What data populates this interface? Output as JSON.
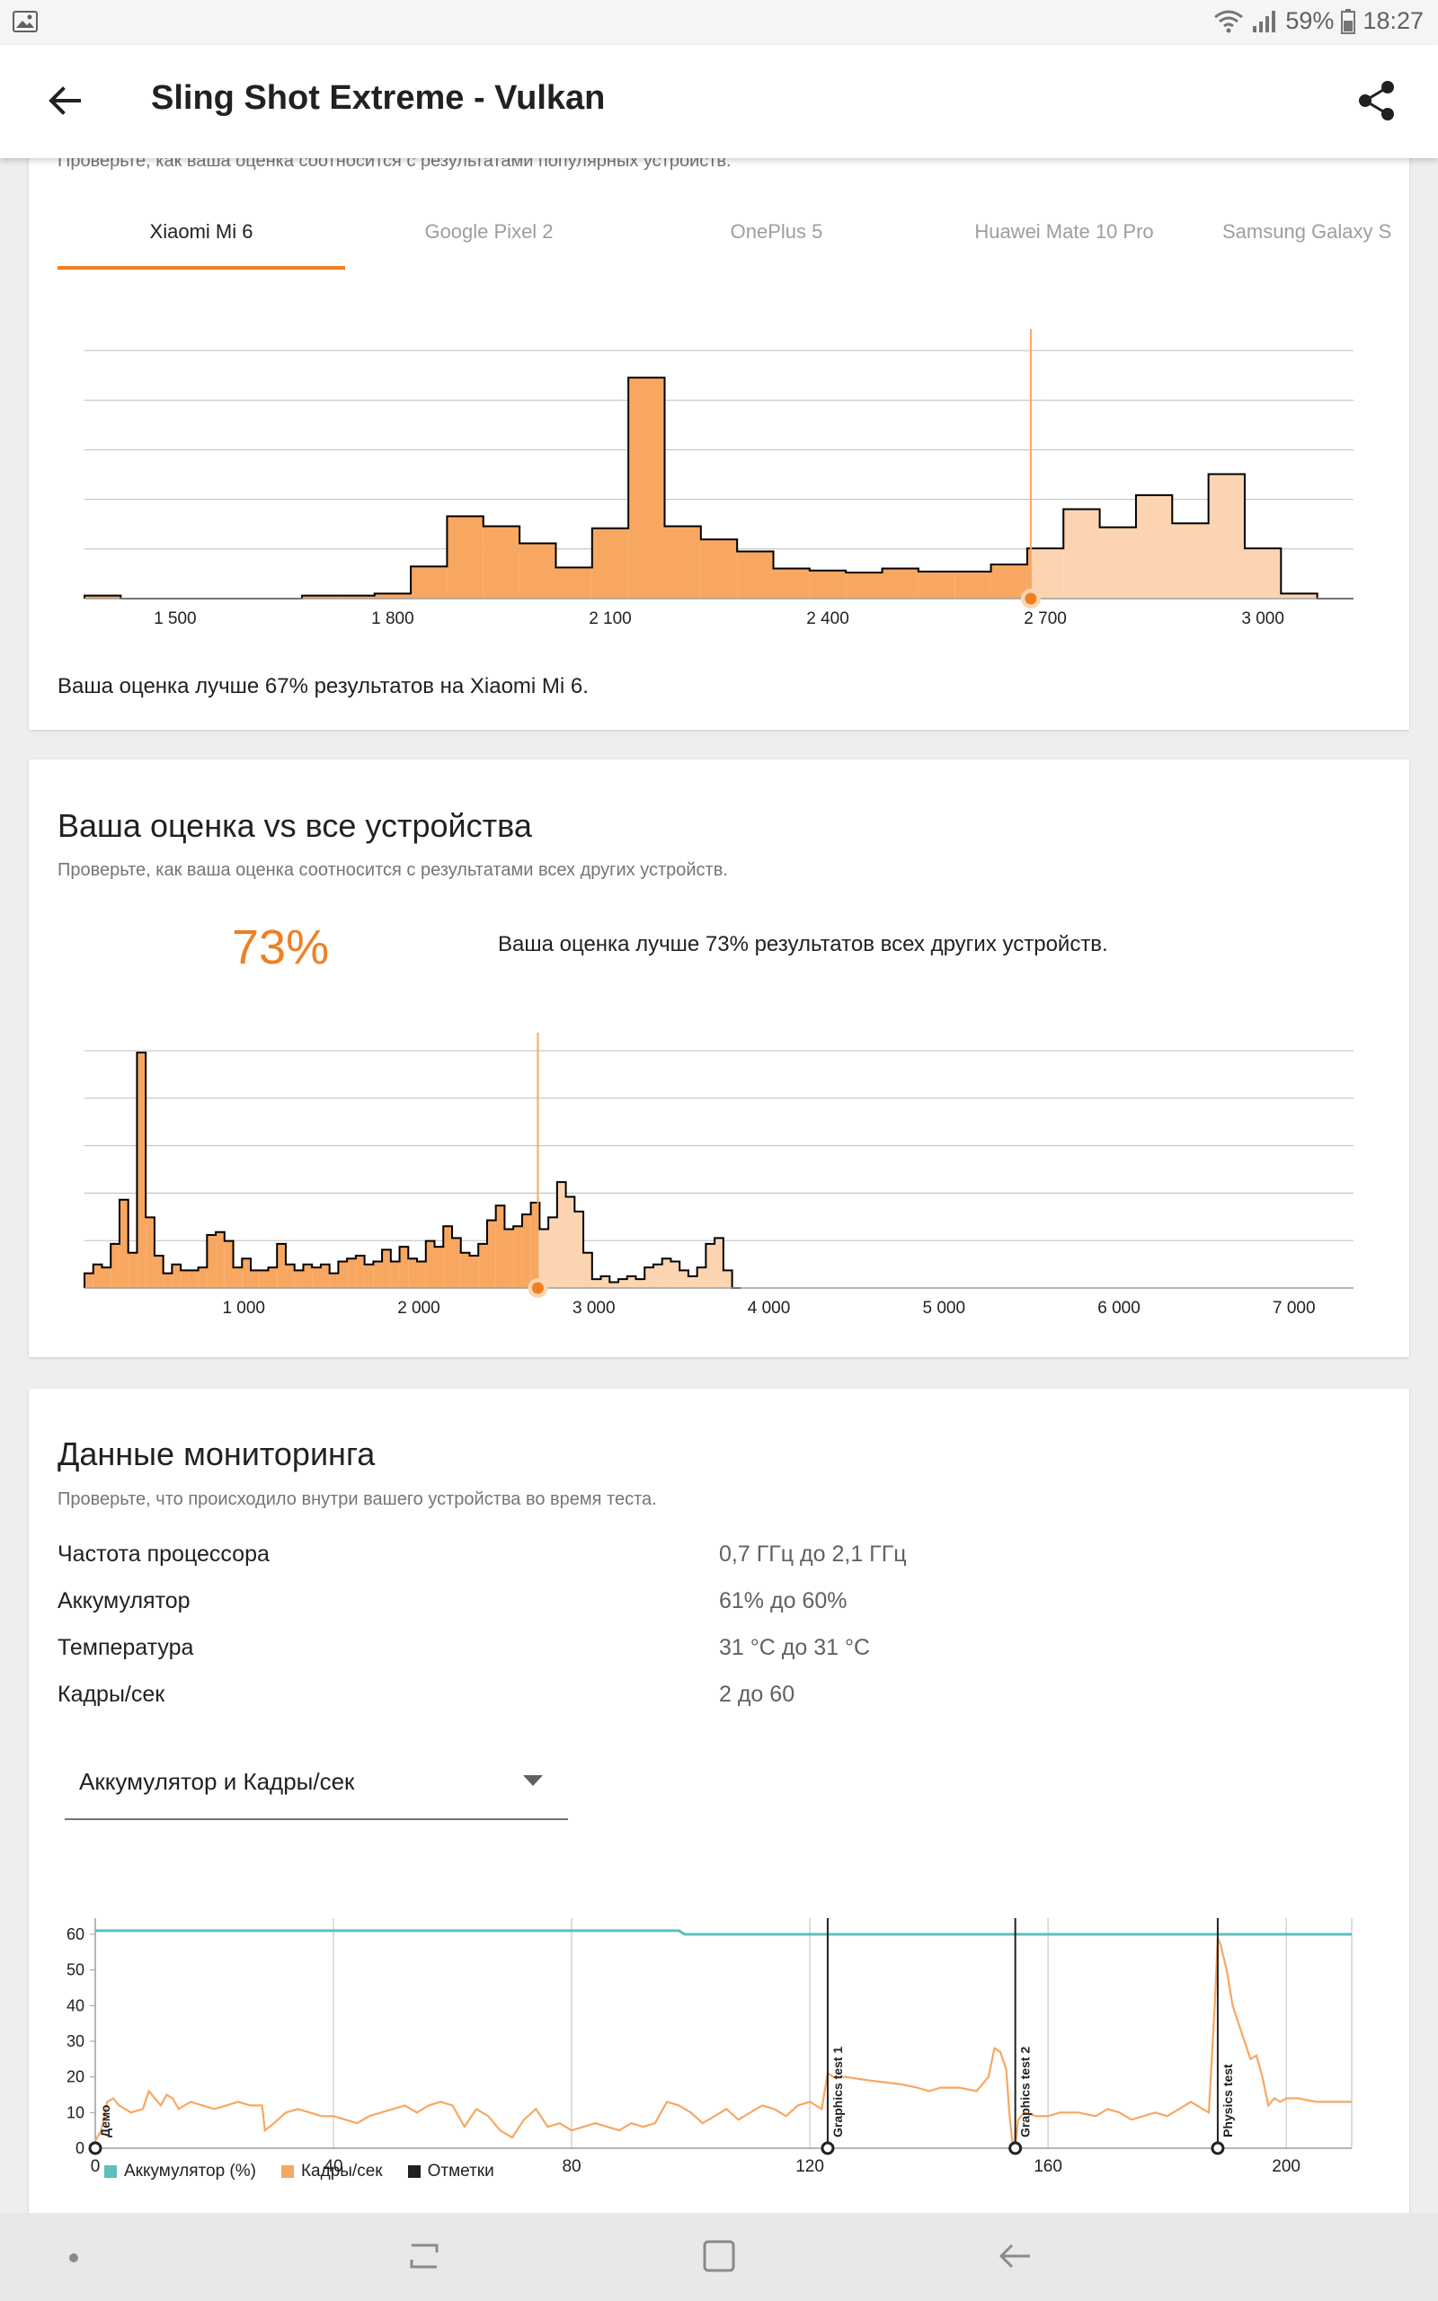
{
  "status_bar": {
    "battery": "59%",
    "time": "18:27",
    "icons": [
      "image-icon",
      "wifi-icon",
      "signal-icon",
      "battery-icon"
    ]
  },
  "app_bar": {
    "title": "Sling Shot Extreme - Vulkan",
    "back_icon": "arrow-left-icon",
    "share_icon": "share-icon"
  },
  "card1": {
    "subtitle": "Проверьте, как ваша оценка соотносится с результатами популярных устройств.",
    "tabs": [
      {
        "label": "Xiaomi Mi 6",
        "active": true
      },
      {
        "label": "Google Pixel 2",
        "active": false
      },
      {
        "label": "OnePlus 5",
        "active": false
      },
      {
        "label": "Huawei Mate 10 Pro",
        "active": false
      },
      {
        "label": "Samsung Galaxy S"
      }
    ],
    "result": "Ваша оценка лучше 67% результатов на Xiaomi Mi 6.",
    "chart_data": {
      "type": "bar",
      "x_ticks": [
        "1 500",
        "1 800",
        "2 100",
        "2 400",
        "2 700",
        "3 000"
      ],
      "x_tick_values": [
        1500,
        1800,
        2100,
        2400,
        2700,
        3000
      ],
      "xlim": [
        1375,
        3125
      ],
      "bin_width": 50,
      "bins_start": [
        1375,
        1425,
        1475,
        1525,
        1575,
        1625,
        1675,
        1725,
        1775,
        1825,
        1875,
        1925,
        1975,
        2025,
        2075,
        2125,
        2175,
        2225,
        2275,
        2325,
        2375,
        2425,
        2475,
        2525,
        2575,
        2625,
        2675,
        2725,
        2775,
        2825,
        2875,
        2925,
        2975,
        3025,
        3075
      ],
      "values": [
        0.3,
        0,
        0,
        0,
        0,
        0,
        0.3,
        0.3,
        0.5,
        3.2,
        8.2,
        7.2,
        5.5,
        3.1,
        7.0,
        22.0,
        7.2,
        5.9,
        4.7,
        3.0,
        2.8,
        2.6,
        3.0,
        2.7,
        2.7,
        3.4,
        5.0,
        8.9,
        7.1,
        10.3,
        7.5,
        12.4,
        5.0,
        0.5,
        0
      ],
      "your_score": 2680,
      "colors": {
        "below": "#f8a761",
        "above": "#fcd4b1",
        "line": "#000000",
        "marker": "#f07f24"
      },
      "grid": true
    }
  },
  "card2": {
    "title": "Ваша оценка vs все устройства",
    "subtitle": "Проверьте, как ваша оценка соотносится с результатами всех других устройств.",
    "percent": "73%",
    "result": "Ваша оценка лучше 73% результатов всех других устройств.",
    "chart_data": {
      "type": "bar",
      "x_ticks": [
        "1 000",
        "2 000",
        "3 000",
        "4 000",
        "5 000",
        "6 000",
        "7 000"
      ],
      "x_tick_values": [
        1000,
        2000,
        3000,
        4000,
        5000,
        6000,
        7000
      ],
      "xlim": [
        90,
        7340
      ],
      "bin_width": 50,
      "bins_start": [
        90,
        140,
        190,
        240,
        290,
        340,
        390,
        440,
        490,
        540,
        590,
        640,
        690,
        740,
        790,
        840,
        890,
        940,
        990,
        1040,
        1090,
        1140,
        1190,
        1240,
        1290,
        1340,
        1390,
        1440,
        1490,
        1540,
        1590,
        1640,
        1690,
        1740,
        1790,
        1840,
        1890,
        1940,
        1990,
        2040,
        2090,
        2140,
        2190,
        2240,
        2290,
        2340,
        2390,
        2440,
        2490,
        2540,
        2590,
        2640,
        2690,
        2740,
        2790,
        2840,
        2890,
        2940,
        2990,
        3040,
        3090,
        3140,
        3190,
        3240,
        3290,
        3340,
        3390,
        3440,
        3490,
        3540,
        3590,
        3640,
        3690,
        3740,
        3790
      ],
      "values": [
        2.5,
        4.0,
        3.5,
        7.5,
        15.0,
        6.0,
        40.0,
        12.0,
        5.5,
        2.5,
        4.0,
        3.0,
        3.0,
        3.5,
        9.0,
        9.5,
        8.0,
        3.5,
        5.0,
        3.0,
        3.0,
        3.5,
        7.5,
        4.0,
        3.0,
        4.0,
        3.5,
        4.0,
        2.5,
        4.5,
        5.0,
        5.5,
        4.0,
        4.5,
        6.5,
        4.5,
        7.0,
        5.0,
        4.5,
        8.0,
        7.0,
        10.5,
        8.5,
        6.0,
        5.5,
        7.5,
        11.5,
        14.0,
        10.0,
        10.5,
        12.5,
        14.5,
        10.0,
        12.0,
        18.0,
        15.5,
        13.0,
        6.0,
        1.5,
        2.0,
        1.0,
        1.5,
        2.0,
        1.5,
        3.5,
        4.0,
        5.0,
        4.5,
        3.0,
        2.0,
        3.5,
        7.5,
        8.5,
        3.0,
        0
      ],
      "your_score": 2680,
      "colors": {
        "below": "#f8a761",
        "above": "#fcd4b1",
        "line": "#000000",
        "marker": "#f07f24"
      },
      "grid": true
    }
  },
  "card3": {
    "title": "Данные мониторинга",
    "subtitle": "Проверьте, что происходило внутри вашего устройства во время теста.",
    "rows": [
      {
        "label": "Частота процессора",
        "value": "0,7 ГГц до 2,1 ГГц"
      },
      {
        "label": "Аккумулятор",
        "value": "61% до 60%"
      },
      {
        "label": "Температура",
        "value": "31 °C до 31 °C"
      },
      {
        "label": "Кадры/сек",
        "value": "2 до 60"
      }
    ],
    "dropdown": {
      "selected": "Аккумулятор и Кадры/сек",
      "icon": "dropdown-arrow-icon"
    },
    "legend": [
      {
        "label": "Аккумулятор (%)",
        "color": "#5bc0be"
      },
      {
        "label": "Кадры/сек",
        "color": "#f8a761"
      },
      {
        "label": "Отметки",
        "color": "#212121"
      }
    ],
    "chart_data": {
      "type": "line",
      "x_ticks": [
        "0",
        "40",
        "80",
        "120",
        "160",
        "200"
      ],
      "x_tick_values": [
        0,
        40,
        80,
        120,
        160,
        200
      ],
      "y_ticks": [
        "0",
        "10",
        "20",
        "30",
        "40",
        "50",
        "60"
      ],
      "y_tick_values": [
        0,
        10,
        20,
        30,
        40,
        50,
        60
      ],
      "xlim": [
        0,
        211
      ],
      "ylim": [
        0,
        60
      ],
      "markers": [
        {
          "x": 0,
          "label": "Демо"
        },
        {
          "x": 123,
          "label": "Graphics test 1"
        },
        {
          "x": 154.5,
          "label": "Graphics test 2"
        },
        {
          "x": 188.5,
          "label": "Physics test"
        }
      ],
      "series": [
        {
          "name": "Аккумулятор (%)",
          "color": "#5bc0be",
          "x": [
            0,
            98,
            99,
            211
          ],
          "values": [
            61,
            61,
            60,
            60
          ]
        },
        {
          "name": "Кадры/сек",
          "color": "#f8a761",
          "x": [
            0,
            1,
            2,
            3,
            4,
            6,
            8,
            9,
            10,
            11,
            12,
            13,
            14,
            16,
            18,
            20,
            22,
            24,
            26,
            28,
            28.5,
            30,
            32,
            34,
            36,
            38,
            40,
            42,
            44,
            46,
            48,
            50,
            52,
            54,
            56,
            58,
            60,
            62,
            64,
            66,
            68,
            70,
            72,
            74,
            76,
            78,
            80,
            82,
            84,
            86,
            88,
            90,
            92,
            94,
            96,
            98,
            100,
            102,
            104,
            106,
            108,
            110,
            112,
            114,
            116,
            118,
            120,
            122,
            123,
            124,
            126,
            130,
            135,
            138,
            140,
            142,
            145,
            148,
            150,
            151,
            152,
            153,
            153.5,
            154,
            154.5,
            155,
            156,
            158,
            160,
            162,
            165,
            168,
            170,
            172,
            174,
            176,
            178,
            180,
            182,
            184,
            186,
            187,
            188,
            188.5,
            189,
            190,
            191,
            192,
            193,
            194,
            195,
            196,
            197,
            198,
            199,
            200,
            202,
            205,
            208,
            211
          ],
          "values": [
            2,
            5,
            13,
            14,
            12,
            10,
            11,
            16,
            14,
            12,
            15,
            14,
            11,
            13,
            12,
            11,
            12,
            13,
            12,
            12,
            5,
            7,
            10,
            11,
            10,
            9,
            9,
            8,
            7,
            9,
            10,
            11,
            12,
            10,
            12,
            13,
            12,
            6,
            11,
            9,
            5,
            3,
            8,
            11,
            6,
            7,
            5,
            6,
            7,
            6,
            5,
            7,
            6,
            7,
            13,
            12,
            10,
            7,
            9,
            11,
            8,
            10,
            12,
            11,
            9,
            12,
            13,
            11,
            21,
            20,
            20,
            19,
            18,
            17,
            16,
            17,
            17,
            16,
            20,
            28,
            27,
            22,
            10,
            2,
            1,
            8,
            10,
            9,
            9,
            10,
            10,
            9,
            11,
            10,
            8,
            9,
            10,
            9,
            11,
            13,
            11,
            10,
            40,
            59,
            57,
            50,
            40,
            35,
            30,
            25,
            26,
            20,
            12,
            14,
            13,
            14,
            14,
            13,
            13,
            13
          ]
        }
      ],
      "grid": true
    }
  }
}
